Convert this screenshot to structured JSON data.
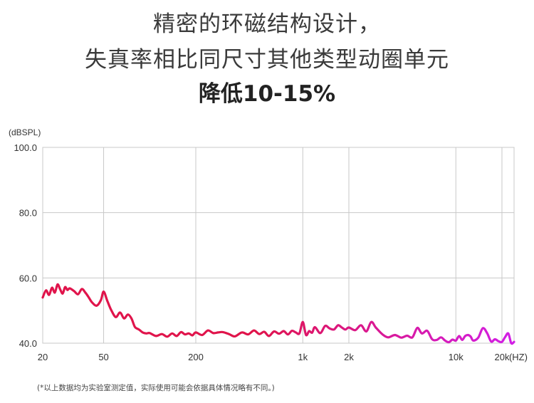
{
  "header": {
    "line1": "精密的环磁结构设计，",
    "line2": "失真率相比同尺寸其他类型动圈单元",
    "line3": "降低10-15%"
  },
  "footnote": "(*以上数据均为实验室测定值，实际使用可能会依据具体情况略有不同。)",
  "colors": {
    "start": "#e0144b",
    "end": "#d21ee6",
    "grid": "#c8c8c8",
    "axis": "#888888"
  },
  "chart_data": {
    "type": "line",
    "title": "",
    "ylabel": "(dBSPL)",
    "xlabel_unit": "(HZ)",
    "x_scale": "log",
    "xlim": [
      20,
      24000
    ],
    "ylim": [
      40,
      100
    ],
    "y_ticks": [
      {
        "value": 100,
        "label": "100.0"
      },
      {
        "value": 80,
        "label": "80.0"
      },
      {
        "value": 60,
        "label": "60.0"
      },
      {
        "value": 40,
        "label": "40.0"
      }
    ],
    "x_ticks": [
      {
        "value": 20,
        "label": "20"
      },
      {
        "value": 50,
        "label": "50"
      },
      {
        "value": 200,
        "label": "200"
      },
      {
        "value": 1000,
        "label": "1k"
      },
      {
        "value": 2000,
        "label": "2k"
      },
      {
        "value": 10000,
        "label": "10k"
      },
      {
        "value": 20000,
        "label": "20k"
      }
    ],
    "series": [
      {
        "x": [
          20,
          21,
          22,
          23,
          24,
          25,
          26,
          27,
          28,
          29,
          30,
          32,
          34,
          36,
          38,
          40,
          42,
          45,
          48,
          50,
          53,
          56,
          60,
          64,
          68,
          72,
          76,
          80,
          85,
          90,
          95,
          100,
          110,
          120,
          130,
          140,
          150,
          160,
          170,
          180,
          190,
          200,
          220,
          240,
          260,
          280,
          300,
          330,
          360,
          400,
          440,
          480,
          520,
          560,
          600,
          650,
          700,
          750,
          800,
          850,
          900,
          950,
          1000,
          1050,
          1100,
          1150,
          1200,
          1300,
          1400,
          1500,
          1600,
          1700,
          1800,
          1900,
          2000,
          2200,
          2400,
          2600,
          2800,
          3000,
          3300,
          3600,
          4000,
          4400,
          4800,
          5200,
          5600,
          6000,
          6500,
          7000,
          7500,
          8000,
          8500,
          9000,
          9500,
          10000,
          10500,
          11000,
          11500,
          12000,
          12500,
          13000,
          14000,
          15000,
          16000,
          17000,
          18000,
          19000,
          20000,
          21000,
          22000,
          23000,
          24000
        ],
        "y": [
          54.0,
          56.2,
          54.8,
          57.0,
          55.5,
          58.0,
          56.5,
          55.2,
          57.2,
          56.3,
          56.8,
          56.0,
          55.0,
          56.6,
          55.5,
          54.0,
          52.5,
          51.5,
          53.2,
          55.8,
          52.8,
          50.2,
          48.0,
          49.4,
          47.6,
          48.8,
          47.6,
          45.0,
          44.2,
          43.3,
          43.0,
          43.1,
          42.2,
          42.8,
          42.0,
          43.0,
          42.2,
          43.4,
          42.7,
          43.0,
          42.4,
          43.3,
          42.5,
          43.9,
          43.1,
          43.3,
          43.4,
          42.8,
          42.1,
          43.3,
          42.7,
          43.9,
          42.8,
          43.5,
          42.2,
          43.6,
          42.9,
          43.7,
          42.7,
          43.8,
          43.3,
          43.0,
          46.5,
          42.5,
          43.7,
          43.2,
          44.9,
          43.1,
          45.3,
          44.5,
          44.2,
          45.5,
          44.8,
          44.2,
          44.8,
          44.0,
          45.5,
          43.6,
          46.5,
          44.8,
          42.8,
          41.8,
          42.5,
          41.7,
          42.3,
          41.8,
          44.7,
          43.0,
          43.8,
          41.2,
          41.0,
          41.8,
          40.8,
          40.3,
          41.1,
          40.8,
          42.2,
          41.0,
          42.2,
          42.5,
          42.0,
          40.8,
          41.7,
          44.6,
          43.1,
          40.5,
          41.2,
          40.6,
          40.4,
          41.9,
          43.0,
          40.0,
          40.4
        ]
      }
    ],
    "grid": true
  }
}
